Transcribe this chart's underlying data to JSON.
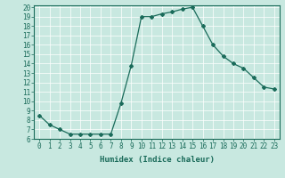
{
  "x": [
    0,
    1,
    2,
    3,
    4,
    5,
    6,
    7,
    8,
    9,
    10,
    11,
    12,
    13,
    14,
    15,
    16,
    17,
    18,
    19,
    20,
    21,
    22,
    23
  ],
  "y": [
    8.5,
    7.5,
    7.0,
    6.5,
    6.5,
    6.5,
    6.5,
    6.5,
    9.8,
    13.8,
    19.0,
    19.0,
    19.3,
    19.5,
    19.8,
    20.0,
    18.0,
    16.0,
    14.8,
    14.0,
    13.5,
    12.5,
    11.5,
    11.3
  ],
  "line_color": "#1a6b5a",
  "marker": "D",
  "marker_size": 2.0,
  "bg_color": "#c8e8e0",
  "grid_color": "#ffffff",
  "xlabel": "Humidex (Indice chaleur)",
  "xlim": [
    -0.5,
    23.5
  ],
  "ylim": [
    6,
    20.2
  ],
  "xtick_labels": [
    "0",
    "1",
    "2",
    "3",
    "4",
    "5",
    "6",
    "7",
    "8",
    "9",
    "10",
    "11",
    "12",
    "13",
    "14",
    "15",
    "16",
    "17",
    "18",
    "19",
    "20",
    "21",
    "22",
    "23"
  ],
  "ytick_values": [
    6,
    7,
    8,
    9,
    10,
    11,
    12,
    13,
    14,
    15,
    16,
    17,
    18,
    19,
    20
  ],
  "label_fontsize": 6.5,
  "tick_fontsize": 5.5
}
